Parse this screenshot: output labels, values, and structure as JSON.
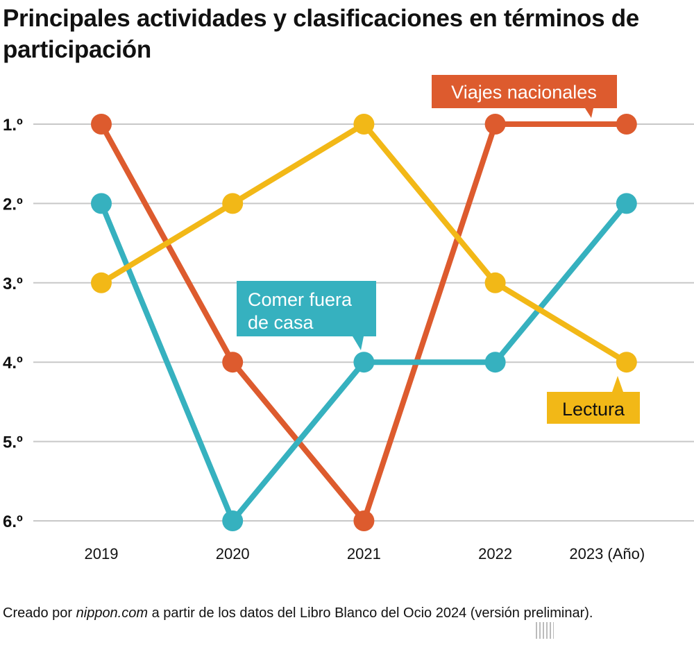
{
  "title": "Principales actividades y clasificaciones en términos de participación",
  "source": {
    "prefix": "Creado por ",
    "site": "nippon.com",
    "suffix": " a partir de los datos del Libro Blanco del Ocio 2024 (versión preliminar)."
  },
  "logo": {
    "name": "nippon",
    "dot": ".",
    "tld": "com"
  },
  "chart_data": {
    "type": "line",
    "title": "Principales actividades y clasificaciones en términos de participación",
    "x": [
      "2019",
      "2020",
      "2021",
      "2022",
      "2023"
    ],
    "x_tick_labels": [
      "2019",
      "2020",
      "2021",
      "2022",
      "2023 (Año)"
    ],
    "y_tick_labels": [
      "1.º",
      "2.º",
      "3.º",
      "4.º",
      "5.º",
      "6.º"
    ],
    "ylim": [
      1,
      6
    ],
    "y_inverted": true,
    "grid": true,
    "series": [
      {
        "name": "Viajes nacionales",
        "color": "#dd5b2e",
        "values": [
          1,
          4,
          6,
          1,
          1
        ]
      },
      {
        "name": "Comer fuera de casa",
        "color": "#36b1bf",
        "values": [
          2,
          6,
          4,
          4,
          2
        ]
      },
      {
        "name": "Lectura",
        "color": "#f2b817",
        "values": [
          3,
          2,
          1,
          3,
          4
        ]
      }
    ],
    "labels": {
      "viajes": "Viajes nacionales",
      "comer_1": "Comer fuera",
      "comer_2": "de casa",
      "lectura": "Lectura"
    }
  }
}
